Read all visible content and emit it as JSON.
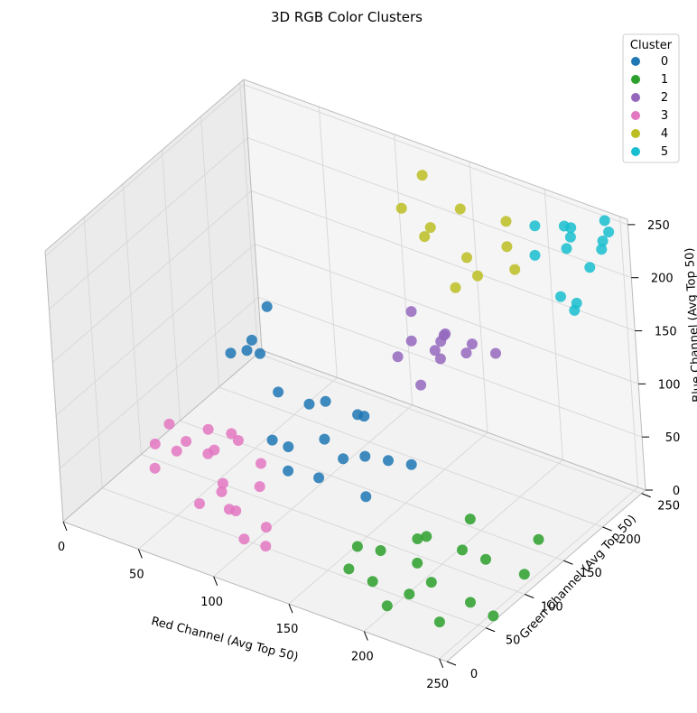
{
  "chart_data": {
    "type": "scatter",
    "title": "3D RGB Color Clusters",
    "xlabel": "Red Channel (Avg Top 50)",
    "ylabel": "Green Channel (Avg Top 50)",
    "zlabel": "Blue Channel (Avg Top 50)",
    "xlim": [
      0,
      255
    ],
    "ylim": [
      0,
      255
    ],
    "zlim": [
      0,
      255
    ],
    "xticks": [
      "0",
      "50",
      "100",
      "150",
      "200",
      "250"
    ],
    "yticks": [
      "0",
      "50",
      "100",
      "150",
      "200",
      "250"
    ],
    "zticks": [
      "0",
      "50",
      "100",
      "150",
      "200",
      "250"
    ],
    "grid": true,
    "legend": {
      "title": "Cluster",
      "placement": "top-right",
      "entries": [
        "0",
        "1",
        "2",
        "3",
        "4",
        "5"
      ]
    },
    "series": [
      {
        "name": "0",
        "color": "#1f77b4",
        "points": [
          [
            60,
            130,
            110
          ],
          [
            80,
            110,
            130
          ],
          [
            100,
            130,
            80
          ],
          [
            120,
            160,
            60
          ],
          [
            90,
            100,
            60
          ],
          [
            110,
            170,
            50
          ],
          [
            60,
            110,
            120
          ],
          [
            120,
            100,
            40
          ],
          [
            140,
            120,
            20
          ],
          [
            75,
            110,
            140
          ],
          [
            130,
            140,
            40
          ],
          [
            100,
            150,
            70
          ],
          [
            85,
            120,
            90
          ],
          [
            115,
            140,
            30
          ],
          [
            140,
            150,
            35
          ],
          [
            95,
            110,
            50
          ],
          [
            120,
            110,
            70
          ],
          [
            70,
            140,
            150
          ],
          [
            150,
            160,
            30
          ],
          [
            105,
            90,
            45
          ]
        ]
      },
      {
        "name": "1",
        "color": "#2ca02c",
        "points": [
          [
            170,
            80,
            10
          ],
          [
            200,
            70,
            20
          ],
          [
            220,
            90,
            30
          ],
          [
            250,
            110,
            10
          ],
          [
            180,
            50,
            5
          ],
          [
            210,
            40,
            15
          ],
          [
            240,
            60,
            10
          ],
          [
            230,
            100,
            20
          ],
          [
            190,
            90,
            25
          ],
          [
            255,
            60,
            5
          ],
          [
            200,
            30,
            5
          ],
          [
            160,
            70,
            15
          ],
          [
            220,
            50,
            25
          ],
          [
            250,
            130,
            30
          ],
          [
            185,
            110,
            12
          ],
          [
            235,
            30,
            8
          ],
          [
            170,
            40,
            18
          ],
          [
            210,
            120,
            35
          ]
        ]
      },
      {
        "name": "2",
        "color": "#9467bd",
        "points": [
          [
            150,
            170,
            140
          ],
          [
            160,
            180,
            130
          ],
          [
            170,
            200,
            120
          ],
          [
            140,
            190,
            150
          ],
          [
            180,
            190,
            140
          ],
          [
            160,
            160,
            110
          ],
          [
            150,
            210,
            120
          ],
          [
            170,
            170,
            150
          ],
          [
            190,
            200,
            130
          ],
          [
            140,
            170,
            120
          ],
          [
            165,
            185,
            145
          ],
          [
            155,
            195,
            110
          ]
        ]
      },
      {
        "name": "3",
        "color": "#e377c2",
        "points": [
          [
            10,
            100,
            15
          ],
          [
            20,
            120,
            10
          ],
          [
            30,
            90,
            25
          ],
          [
            40,
            110,
            15
          ],
          [
            50,
            130,
            20
          ],
          [
            60,
            90,
            10
          ],
          [
            70,
            70,
            20
          ],
          [
            80,
            60,
            15
          ],
          [
            90,
            50,
            25
          ],
          [
            100,
            40,
            10
          ],
          [
            30,
            130,
            20
          ],
          [
            50,
            100,
            30
          ],
          [
            70,
            120,
            15
          ],
          [
            20,
            80,
            10
          ],
          [
            110,
            50,
            20
          ],
          [
            15,
            110,
            30
          ],
          [
            40,
            140,
            15
          ],
          [
            85,
            90,
            20
          ],
          [
            60,
            60,
            10
          ],
          [
            120,
            30,
            20
          ]
        ]
      },
      {
        "name": "4",
        "color": "#bcbd22",
        "points": [
          [
            130,
            230,
            190
          ],
          [
            150,
            240,
            220
          ],
          [
            170,
            220,
            180
          ],
          [
            120,
            250,
            230
          ],
          [
            180,
            240,
            200
          ],
          [
            160,
            210,
            170
          ],
          [
            140,
            220,
            210
          ],
          [
            190,
            230,
            190
          ],
          [
            110,
            240,
            200
          ],
          [
            175,
            250,
            215
          ],
          [
            155,
            235,
            180
          ]
        ]
      },
      {
        "name": "5",
        "color": "#17becf",
        "points": [
          [
            220,
            240,
            240
          ],
          [
            230,
            230,
            250
          ],
          [
            240,
            250,
            230
          ],
          [
            250,
            240,
            250
          ],
          [
            210,
            220,
            220
          ],
          [
            230,
            250,
            200
          ],
          [
            250,
            230,
            240
          ],
          [
            220,
            230,
            180
          ],
          [
            240,
            210,
            190
          ],
          [
            200,
            240,
            230
          ],
          [
            245,
            245,
            255
          ],
          [
            215,
            250,
            210
          ],
          [
            235,
            220,
            250
          ],
          [
            225,
            240,
            170
          ]
        ]
      }
    ]
  }
}
